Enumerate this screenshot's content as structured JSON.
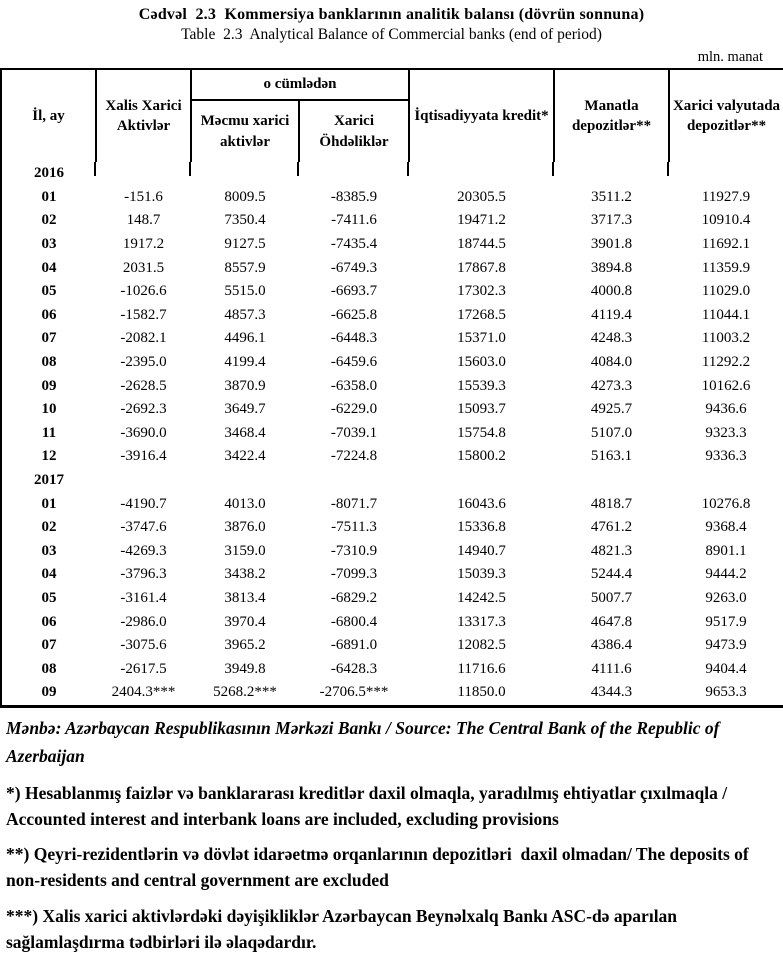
{
  "page": {
    "title_az": "Cədvəl  2.3  Kommersiya banklarının analitik balansı (dövrün sonnuna)",
    "title_en": "Table  2.3  Analytical Balance of Commercial banks (end of period)",
    "unit_label": "mln. manat"
  },
  "table": {
    "columns": {
      "period": "İl, ay",
      "net_foreign_assets": "Xalis Xarici Aktivlər",
      "including_group": "o cümlədən",
      "gross_foreign_assets": "Məcmu xarici aktivlər",
      "foreign_liabilities": "Xarici Öhdəliklər",
      "credit_to_economy": "İqtisadiyyata kredit*",
      "manat_deposits": "Manatla depozitlər**",
      "fx_deposits": "Xarici valyutada depozitlər**"
    },
    "rows": [
      {
        "type": "year",
        "label": "2016",
        "values": [
          "",
          "",
          "",
          "",
          "",
          ""
        ]
      },
      {
        "type": "data",
        "label": "01",
        "values": [
          "-151.6",
          "8009.5",
          "-8385.9",
          "20305.5",
          "3511.2",
          "11927.9"
        ]
      },
      {
        "type": "data",
        "label": "02",
        "values": [
          "148.7",
          "7350.4",
          "-7411.6",
          "19471.2",
          "3717.3",
          "10910.4"
        ]
      },
      {
        "type": "data",
        "label": "03",
        "values": [
          "1917.2",
          "9127.5",
          "-7435.4",
          "18744.5",
          "3901.8",
          "11692.1"
        ]
      },
      {
        "type": "data",
        "label": "04",
        "values": [
          "2031.5",
          "8557.9",
          "-6749.3",
          "17867.8",
          "3894.8",
          "11359.9"
        ]
      },
      {
        "type": "data",
        "label": "05",
        "values": [
          "-1026.6",
          "5515.0",
          "-6693.7",
          "17302.3",
          "4000.8",
          "11029.0"
        ]
      },
      {
        "type": "data",
        "label": "06",
        "values": [
          "-1582.7",
          "4857.3",
          "-6625.8",
          "17268.5",
          "4119.4",
          "11044.1"
        ]
      },
      {
        "type": "data",
        "label": "07",
        "values": [
          "-2082.1",
          "4496.1",
          "-6448.3",
          "15371.0",
          "4248.3",
          "11003.2"
        ]
      },
      {
        "type": "data",
        "label": "08",
        "values": [
          "-2395.0",
          "4199.4",
          "-6459.6",
          "15603.0",
          "4084.0",
          "11292.2"
        ]
      },
      {
        "type": "data",
        "label": "09",
        "values": [
          "-2628.5",
          "3870.9",
          "-6358.0",
          "15539.3",
          "4273.3",
          "10162.6"
        ]
      },
      {
        "type": "data",
        "label": "10",
        "values": [
          "-2692.3",
          "3649.7",
          "-6229.0",
          "15093.7",
          "4925.7",
          "9436.6"
        ]
      },
      {
        "type": "data",
        "label": "11",
        "values": [
          "-3690.0",
          "3468.4",
          "-7039.1",
          "15754.8",
          "5107.0",
          "9323.3"
        ]
      },
      {
        "type": "data",
        "label": "12",
        "values": [
          "-3916.4",
          "3422.4",
          "-7224.8",
          "15800.2",
          "5163.1",
          "9336.3"
        ]
      },
      {
        "type": "year",
        "label": "2017",
        "values": [
          "",
          "",
          "",
          "",
          "",
          ""
        ]
      },
      {
        "type": "data",
        "label": "01",
        "values": [
          "-4190.7",
          "4013.0",
          "-8071.7",
          "16043.6",
          "4818.7",
          "10276.8"
        ]
      },
      {
        "type": "data",
        "label": "02",
        "values": [
          "-3747.6",
          "3876.0",
          "-7511.3",
          "15336.8",
          "4761.2",
          "9368.4"
        ]
      },
      {
        "type": "data",
        "label": "03",
        "values": [
          "-4269.3",
          "3159.0",
          "-7310.9",
          "14940.7",
          "4821.3",
          "8901.1"
        ]
      },
      {
        "type": "data",
        "label": "04",
        "values": [
          "-3796.3",
          "3438.2",
          "-7099.3",
          "15039.3",
          "5244.4",
          "9444.2"
        ]
      },
      {
        "type": "data",
        "label": "05",
        "values": [
          "-3161.4",
          "3813.4",
          "-6829.2",
          "14242.5",
          "5007.7",
          "9263.0"
        ]
      },
      {
        "type": "data",
        "label": "06",
        "values": [
          "-2986.0",
          "3970.4",
          "-6800.4",
          "13317.3",
          "4647.8",
          "9517.9"
        ]
      },
      {
        "type": "data",
        "label": "07",
        "values": [
          "-3075.6",
          "3965.2",
          "-6891.0",
          "12082.5",
          "4386.4",
          "9473.9"
        ]
      },
      {
        "type": "data",
        "label": "08",
        "values": [
          "-2617.5",
          "3949.8",
          "-6428.3",
          "11716.6",
          "4111.6",
          "9404.4"
        ]
      },
      {
        "type": "data",
        "label": "09",
        "values": [
          "2404.3***",
          "5268.2***",
          "-2706.5***",
          "11850.0",
          "4344.3",
          "9653.3"
        ]
      }
    ]
  },
  "footnotes": {
    "source": "Mənbə: Azərbaycan Respublikasının Mərkəzi Bankı / Source: The Central Bank of the Republic of Azerbaijan",
    "note_1": "*) Hesablanmış faizlər və banklararası kreditlər daxil olmaqla, yaradılmış ehtiyatlar çıxılmaqla / Accounted interest and interbank loans are included, excluding provisions",
    "note_2": "**) Qeyri-rezidentlərin və dövlət idarəetmə orqanlarının depozitləri  daxil olmadan/ The deposits of non-residents and central government are excluded",
    "note_3": "***) Xalis xarici aktivlərdəki dəyişikliklər Azərbaycan Beynəlxalq Bankı ASC-də aparılan sağlamlaşdırma tədbirləri ilə əlaqədardır."
  }
}
